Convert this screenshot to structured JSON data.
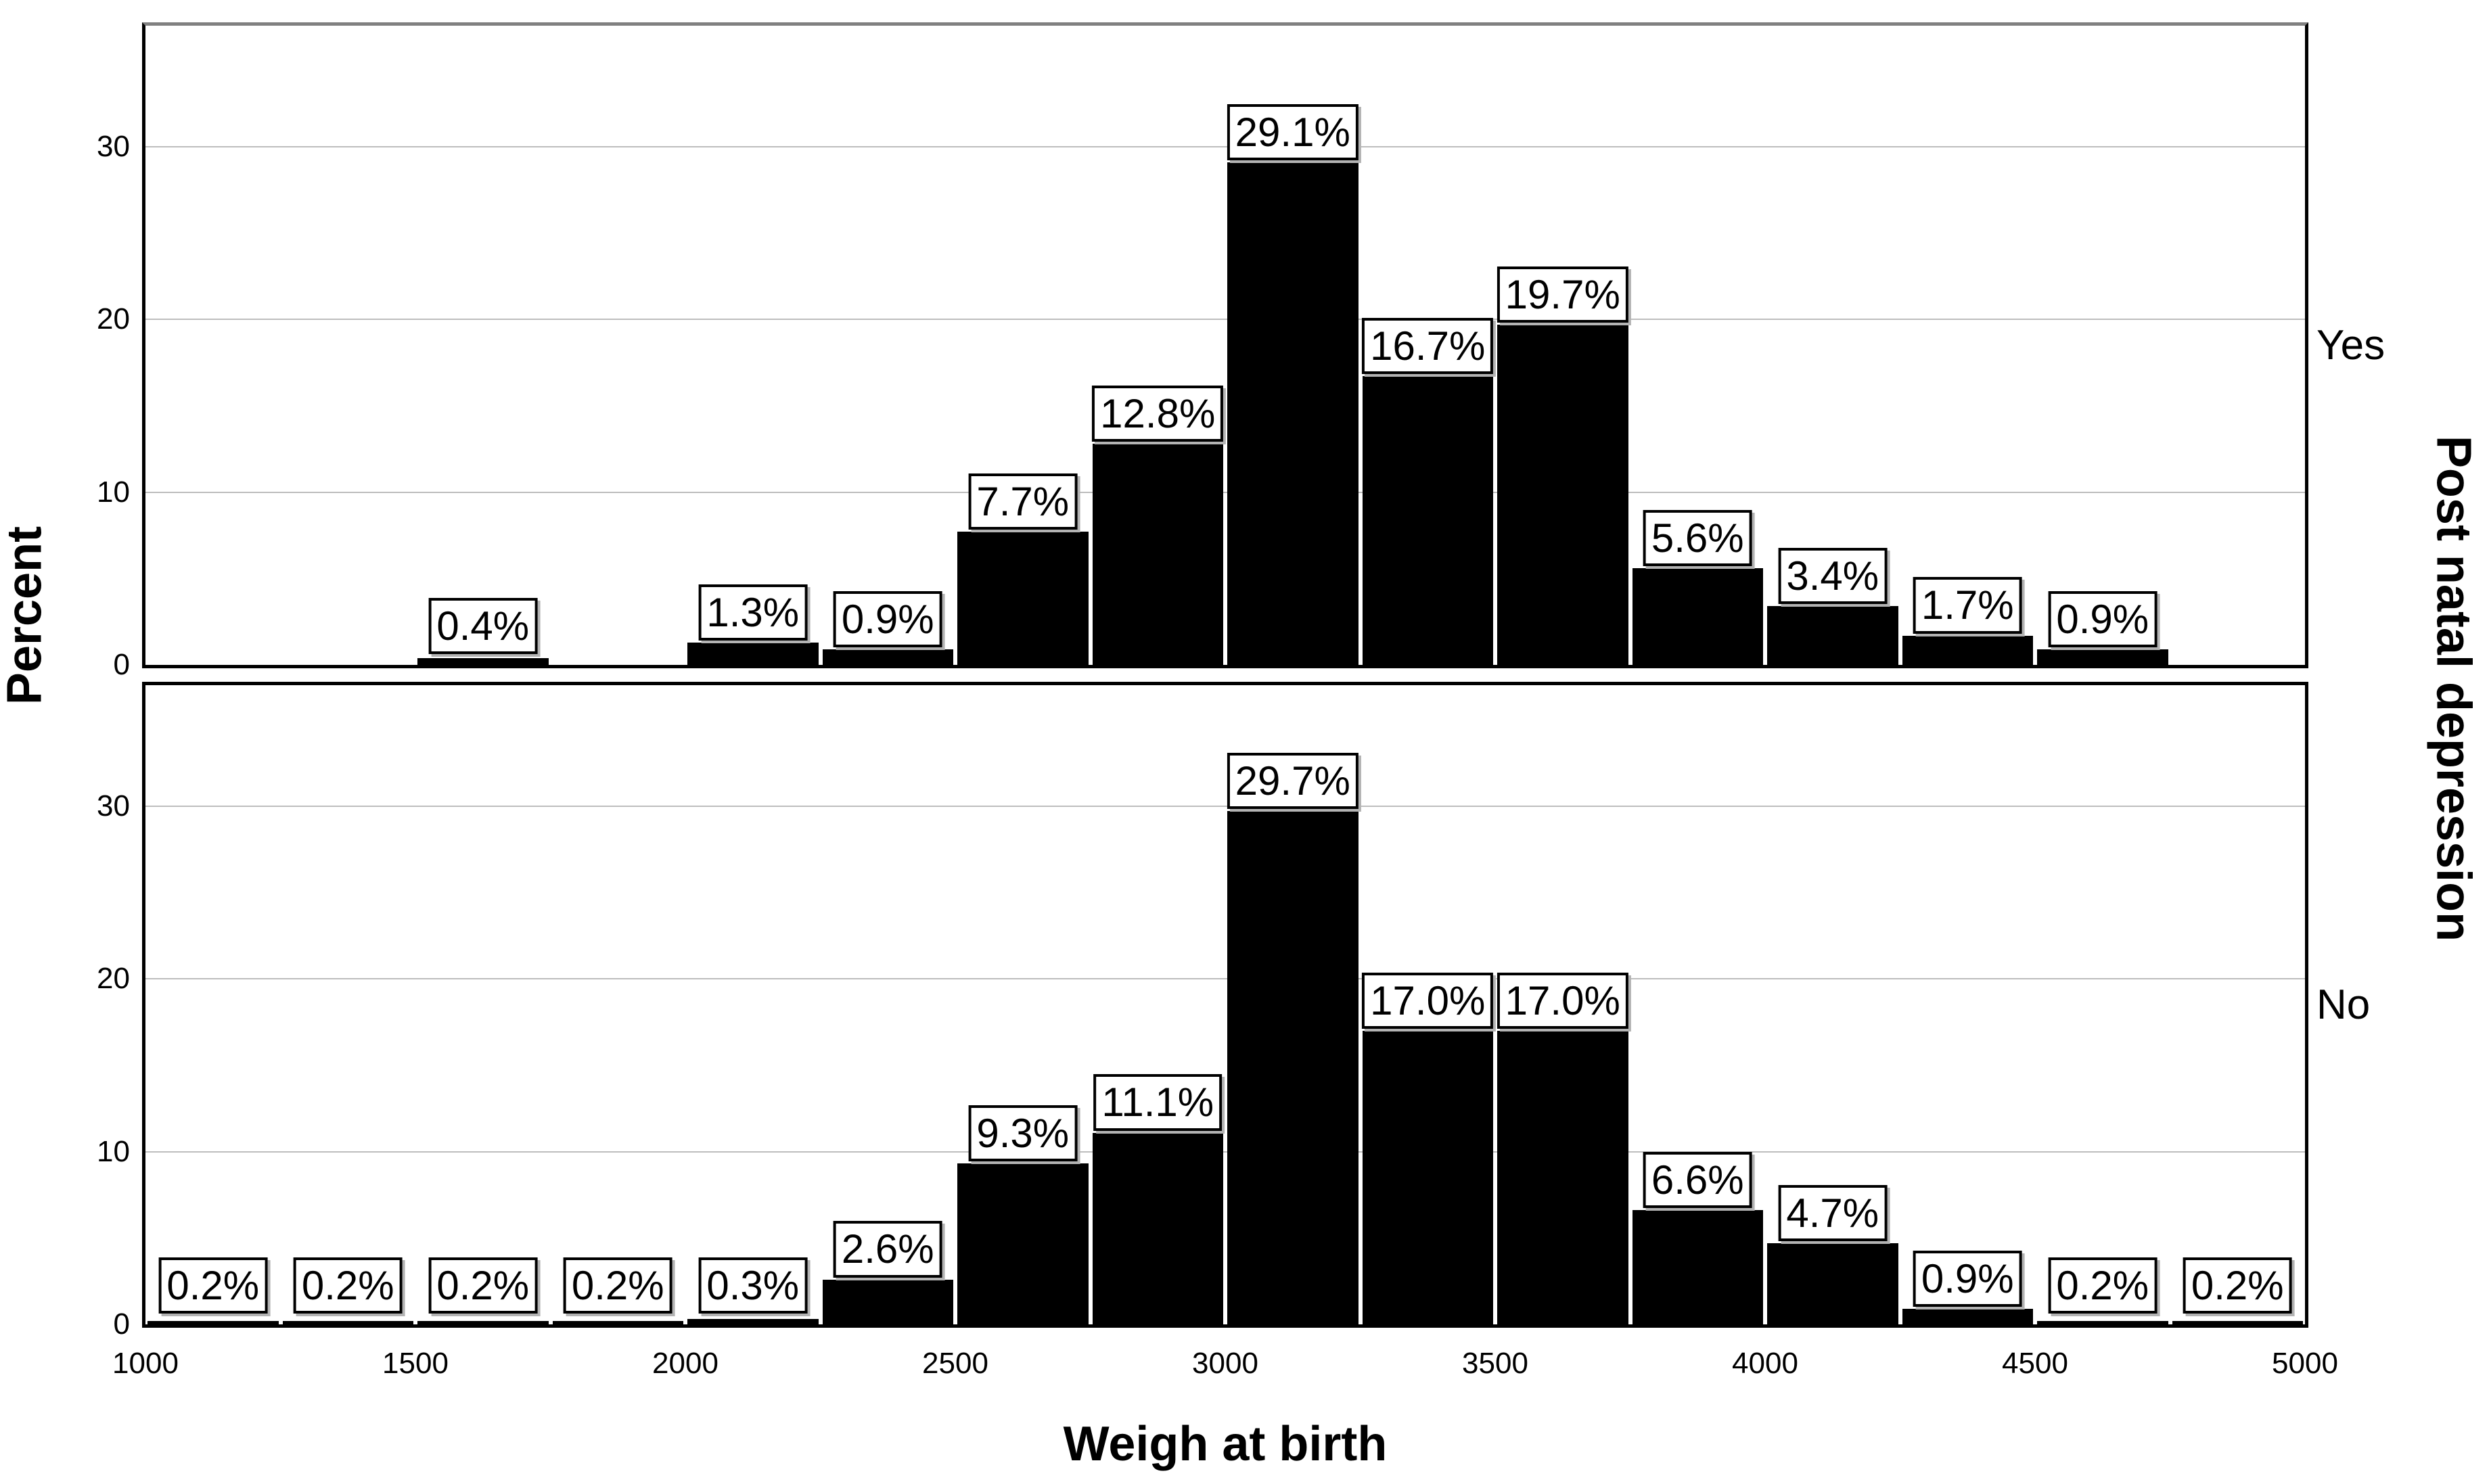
{
  "chart_data": {
    "type": "bar",
    "subtype": "paneled-histogram",
    "title": "",
    "xlabel": "Weigh at birth",
    "ylabel": "Percent",
    "panel_title": "Post natal depression",
    "xlim": [
      1000,
      5000
    ],
    "ylim": [
      0,
      37
    ],
    "bin_width": 250,
    "grid": "horizontal",
    "gridline_values": [
      10,
      20,
      30
    ],
    "bar_color": "#000000",
    "x_ticks": [
      {
        "value": 1000,
        "label": "1000"
      },
      {
        "value": 1500,
        "label": "1500"
      },
      {
        "value": 2000,
        "label": "2000"
      },
      {
        "value": 2500,
        "label": "2500"
      },
      {
        "value": 3000,
        "label": "3000"
      },
      {
        "value": 3500,
        "label": "3500"
      },
      {
        "value": 4000,
        "label": "4000"
      },
      {
        "value": 4500,
        "label": "4500"
      },
      {
        "value": 5000,
        "label": "5000"
      }
    ],
    "y_ticks": [
      {
        "value": 0,
        "label": "0"
      },
      {
        "value": 10,
        "label": "10"
      },
      {
        "value": 20,
        "label": "20"
      },
      {
        "value": 30,
        "label": "30"
      }
    ],
    "panels": [
      {
        "label": "Yes",
        "bins": [
          {
            "x0": 1500,
            "x1": 1750,
            "value": 0.4,
            "label": "0.4%"
          },
          {
            "x0": 2000,
            "x1": 2250,
            "value": 1.3,
            "label": "1.3%"
          },
          {
            "x0": 2250,
            "x1": 2500,
            "value": 0.9,
            "label": "0.9%"
          },
          {
            "x0": 2500,
            "x1": 2750,
            "value": 7.7,
            "label": "7.7%"
          },
          {
            "x0": 2750,
            "x1": 3000,
            "value": 12.8,
            "label": "12.8%"
          },
          {
            "x0": 3000,
            "x1": 3250,
            "value": 29.1,
            "label": "29.1%"
          },
          {
            "x0": 3250,
            "x1": 3500,
            "value": 16.7,
            "label": "16.7%"
          },
          {
            "x0": 3500,
            "x1": 3750,
            "value": 19.7,
            "label": "19.7%"
          },
          {
            "x0": 3750,
            "x1": 4000,
            "value": 5.6,
            "label": "5.6%"
          },
          {
            "x0": 4000,
            "x1": 4250,
            "value": 3.4,
            "label": "3.4%"
          },
          {
            "x0": 4250,
            "x1": 4500,
            "value": 1.7,
            "label": "1.7%"
          },
          {
            "x0": 4500,
            "x1": 4750,
            "value": 0.9,
            "label": "0.9%"
          }
        ]
      },
      {
        "label": "No",
        "bins": [
          {
            "x0": 1000,
            "x1": 1250,
            "value": 0.2,
            "label": "0.2%"
          },
          {
            "x0": 1250,
            "x1": 1500,
            "value": 0.2,
            "label": "0.2%"
          },
          {
            "x0": 1500,
            "x1": 1750,
            "value": 0.2,
            "label": "0.2%"
          },
          {
            "x0": 1750,
            "x1": 2000,
            "value": 0.2,
            "label": "0.2%"
          },
          {
            "x0": 2000,
            "x1": 2250,
            "value": 0.3,
            "label": "0.3%"
          },
          {
            "x0": 2250,
            "x1": 2500,
            "value": 2.6,
            "label": "2.6%"
          },
          {
            "x0": 2500,
            "x1": 2750,
            "value": 9.3,
            "label": "9.3%"
          },
          {
            "x0": 2750,
            "x1": 3000,
            "value": 11.1,
            "label": "11.1%"
          },
          {
            "x0": 3000,
            "x1": 3250,
            "value": 29.7,
            "label": "29.7%"
          },
          {
            "x0": 3250,
            "x1": 3500,
            "value": 17.0,
            "label": "17.0%"
          },
          {
            "x0": 3500,
            "x1": 3750,
            "value": 17.0,
            "label": "17.0%"
          },
          {
            "x0": 3750,
            "x1": 4000,
            "value": 6.6,
            "label": "6.6%"
          },
          {
            "x0": 4000,
            "x1": 4250,
            "value": 4.7,
            "label": "4.7%"
          },
          {
            "x0": 4250,
            "x1": 4500,
            "value": 0.9,
            "label": "0.9%"
          },
          {
            "x0": 4500,
            "x1": 4750,
            "value": 0.2,
            "label": "0.2%"
          },
          {
            "x0": 4750,
            "x1": 5000,
            "value": 0.2,
            "label": "0.2%"
          }
        ]
      }
    ]
  },
  "colors": {
    "bar": "#000000",
    "gridline": "#bdbdbd",
    "frame": "#000000",
    "frame_top": "#808080",
    "label_box_bg": "#ffffff",
    "label_box_border": "#000000",
    "label_box_shadow": "#b3b3b3",
    "text": "#000000",
    "background": "#ffffff"
  }
}
